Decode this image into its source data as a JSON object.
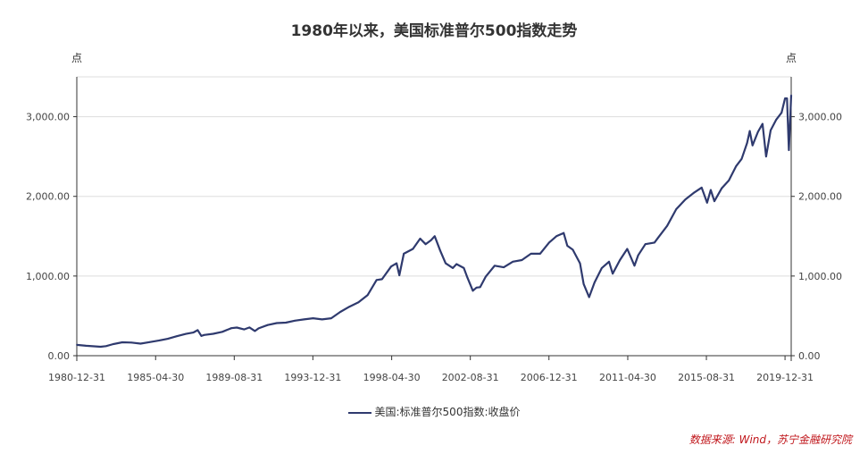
{
  "chart_data": {
    "type": "line",
    "title": "1980年以来，美国标准普尔500指数走势",
    "unit_left": "点",
    "unit_right": "点",
    "ylim": [
      0,
      3500
    ],
    "yticks": [
      0,
      1000,
      2000,
      3000
    ],
    "ytick_labels": [
      "0.00",
      "1,000.00",
      "2,000.00",
      "3,000.00"
    ],
    "xtick_labels": [
      "1980-12-31",
      "1985-04-30",
      "1989-08-31",
      "1993-12-31",
      "1998-04-30",
      "2002-08-31",
      "2006-12-31",
      "2011-04-30",
      "2015-08-31",
      "2019-12-31"
    ],
    "xtick_years": [
      1980.99,
      1985.33,
      1989.66,
      1993.99,
      1998.33,
      2002.66,
      2006.99,
      2011.33,
      2015.66,
      2019.99
    ],
    "xlim": [
      1980.99,
      2020.33
    ],
    "grid": true,
    "legend_position": "bottom",
    "series": [
      {
        "name": "美国:标准普尔500指数:收盘价",
        "color": "#2f3a6e",
        "x": [
          1980.99,
          1981.5,
          1982.3,
          1982.6,
          1983.0,
          1983.5,
          1984.0,
          1984.5,
          1985.0,
          1985.5,
          1986.0,
          1986.5,
          1987.0,
          1987.4,
          1987.65,
          1987.85,
          1988.0,
          1988.5,
          1989.0,
          1989.5,
          1989.8,
          1990.2,
          1990.5,
          1990.8,
          1991.0,
          1991.5,
          1992.0,
          1992.5,
          1993.0,
          1993.5,
          1994.0,
          1994.5,
          1995.0,
          1995.5,
          1996.0,
          1996.5,
          1997.0,
          1997.5,
          1997.8,
          1998.3,
          1998.6,
          1998.75,
          1999.0,
          1999.5,
          1999.9,
          2000.2,
          2000.5,
          2000.7,
          2001.0,
          2001.3,
          2001.7,
          2001.9,
          2002.3,
          2002.5,
          2002.8,
          2003.0,
          2003.2,
          2003.5,
          2004.0,
          2004.5,
          2005.0,
          2005.5,
          2006.0,
          2006.5,
          2007.0,
          2007.4,
          2007.8,
          2008.0,
          2008.3,
          2008.7,
          2008.9,
          2009.2,
          2009.5,
          2009.9,
          2010.3,
          2010.5,
          2010.9,
          2011.3,
          2011.7,
          2011.9,
          2012.3,
          2012.8,
          2013.0,
          2013.5,
          2014.0,
          2014.5,
          2015.0,
          2015.4,
          2015.7,
          2015.9,
          2016.1,
          2016.5,
          2016.9,
          2017.3,
          2017.6,
          2017.9,
          2018.05,
          2018.2,
          2018.5,
          2018.75,
          2018.95,
          2019.2,
          2019.5,
          2019.8,
          2019.99,
          2020.1,
          2020.2,
          2020.33
        ],
        "y": [
          136,
          125,
          112,
          120,
          146,
          168,
          165,
          152,
          171,
          190,
          212,
          245,
          274,
          290,
          321,
          248,
          260,
          275,
          300,
          346,
          353,
          330,
          355,
          310,
          343,
          385,
          410,
          415,
          440,
          455,
          470,
          455,
          470,
          550,
          615,
          670,
          760,
          950,
          960,
          1120,
          1160,
          1010,
          1280,
          1340,
          1470,
          1400,
          1450,
          1500,
          1320,
          1160,
          1100,
          1150,
          1100,
          980,
          815,
          855,
          860,
          990,
          1130,
          1110,
          1180,
          1200,
          1280,
          1280,
          1420,
          1500,
          1540,
          1380,
          1330,
          1160,
          900,
          735,
          920,
          1100,
          1180,
          1030,
          1200,
          1340,
          1130,
          1260,
          1400,
          1420,
          1480,
          1630,
          1840,
          1960,
          2050,
          2110,
          1920,
          2080,
          1940,
          2100,
          2200,
          2380,
          2470,
          2670,
          2820,
          2640,
          2810,
          2910,
          2500,
          2830,
          2960,
          3050,
          3230,
          3230,
          2580,
          3270
        ]
      }
    ],
    "source": "数据来源: Wind，苏宁金融研究院"
  }
}
